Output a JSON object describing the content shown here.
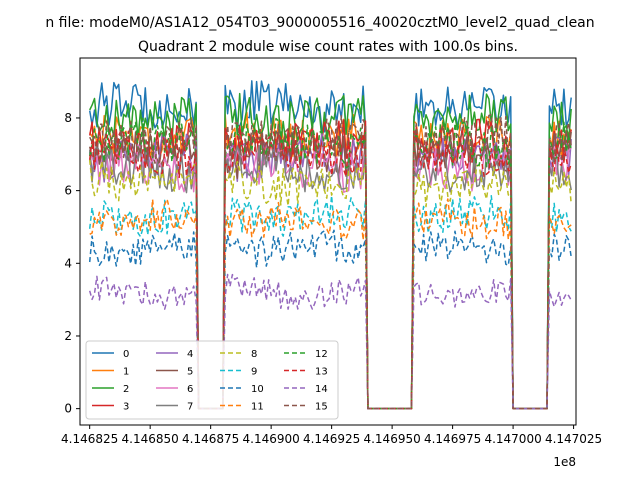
{
  "page": {
    "suptitle": "n file: modeM0/AS1A12_054T03_9000005516_40020cztM0_level2_quad_clean",
    "title": "Quadrant 2 module wise count rates with 100.0s bins.",
    "x_offset_label": "1e8"
  },
  "chart_data": {
    "type": "line",
    "title": "Quadrant 2 module wise count rates with 100.0s bins.",
    "xlabel": "",
    "ylabel": "",
    "xlim": [
      414682100,
      414702600
    ],
    "ylim": [
      -0.45,
      9.65
    ],
    "x_ticks": [
      {
        "value": 414682500,
        "label": "4.146825"
      },
      {
        "value": 414685000,
        "label": "4.146850"
      },
      {
        "value": 414687500,
        "label": "4.146875"
      },
      {
        "value": 414690000,
        "label": "4.146900"
      },
      {
        "value": 414692500,
        "label": "4.146925"
      },
      {
        "value": 414695000,
        "label": "4.146950"
      },
      {
        "value": 414697500,
        "label": "4.146975"
      },
      {
        "value": 414700000,
        "label": "4.147000"
      },
      {
        "value": 414702500,
        "label": "4.147025"
      }
    ],
    "y_ticks": [
      {
        "value": 0,
        "label": "0"
      },
      {
        "value": 2,
        "label": "2"
      },
      {
        "value": 4,
        "label": "4"
      },
      {
        "value": 6,
        "label": "6"
      },
      {
        "value": 8,
        "label": "8"
      }
    ],
    "grid": false,
    "legend_position": "lower-left",
    "legend_columns": 4,
    "time_segments": [
      {
        "start": 414682500,
        "end": 414686900,
        "data": true
      },
      {
        "start": 414687000,
        "end": 414688000,
        "data": false
      },
      {
        "start": 414688100,
        "end": 414693900,
        "data": true
      },
      {
        "start": 414694000,
        "end": 414695800,
        "data": false
      },
      {
        "start": 414695900,
        "end": 414699900,
        "data": true
      },
      {
        "start": 414700000,
        "end": 414701400,
        "data": false
      },
      {
        "start": 414701500,
        "end": 414702400,
        "data": true
      }
    ],
    "series": [
      {
        "name": "0",
        "color": "#1f77b4",
        "dash": "solid",
        "level": 8.3
      },
      {
        "name": "1",
        "color": "#ff7f0e",
        "dash": "solid",
        "level": 7.5
      },
      {
        "name": "2",
        "color": "#2ca02c",
        "dash": "solid",
        "level": 8.0
      },
      {
        "name": "3",
        "color": "#d62728",
        "dash": "solid",
        "level": 7.3
      },
      {
        "name": "4",
        "color": "#9467bd",
        "dash": "solid",
        "level": 6.9
      },
      {
        "name": "5",
        "color": "#8c564b",
        "dash": "solid",
        "level": 7.0
      },
      {
        "name": "6",
        "color": "#e377c2",
        "dash": "solid",
        "level": 6.6
      },
      {
        "name": "7",
        "color": "#7f7f7f",
        "dash": "solid",
        "level": 6.6
      },
      {
        "name": "8",
        "color": "#bcbd22",
        "dash": "dashed",
        "level": 6.2
      },
      {
        "name": "9",
        "color": "#17becf",
        "dash": "dashed",
        "level": 5.3
      },
      {
        "name": "10",
        "color": "#1f77b4",
        "dash": "dashed",
        "level": 4.4
      },
      {
        "name": "11",
        "color": "#ff7f0e",
        "dash": "dashed",
        "level": 5.2
      },
      {
        "name": "12",
        "color": "#2ca02c",
        "dash": "dashed",
        "level": 7.3
      },
      {
        "name": "13",
        "color": "#d62728",
        "dash": "dashed",
        "level": 7.0
      },
      {
        "name": "14",
        "color": "#9467bd",
        "dash": "dashed",
        "level": 3.2
      },
      {
        "name": "15",
        "color": "#8c564b",
        "dash": "dashed",
        "level": 7.4
      }
    ]
  }
}
